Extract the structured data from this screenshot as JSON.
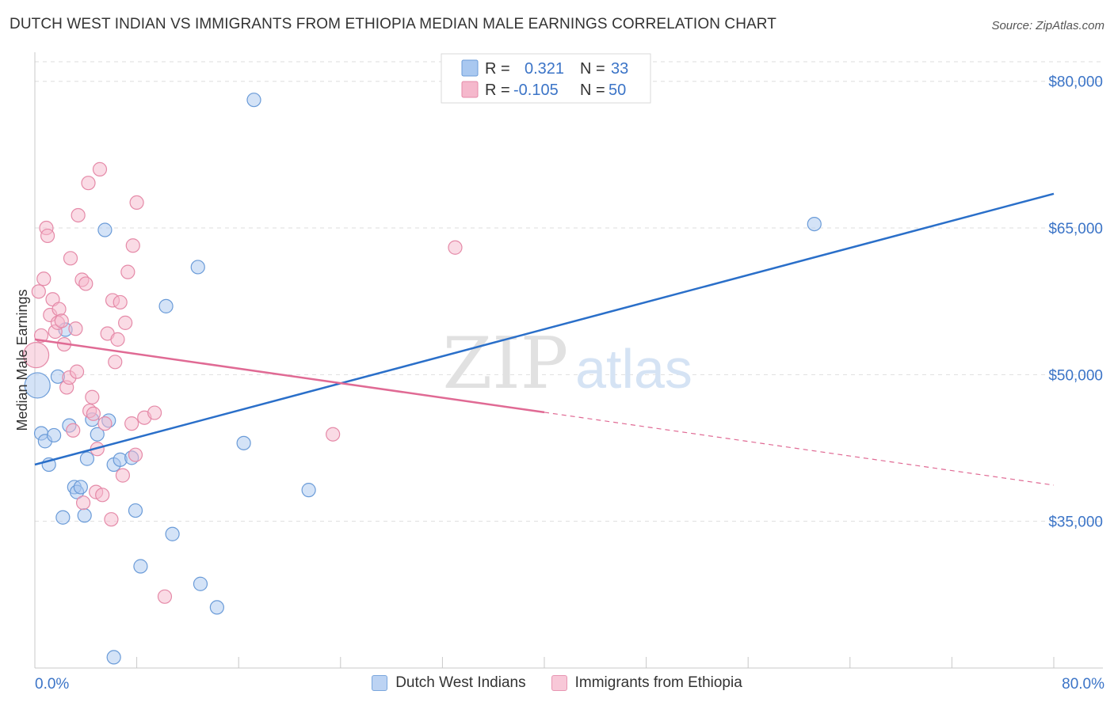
{
  "header": {
    "title": "DUTCH WEST INDIAN VS IMMIGRANTS FROM ETHIOPIA MEDIAN MALE EARNINGS CORRELATION CHART",
    "source": "Source: ZipAtlas.com"
  },
  "watermark": {
    "part1": "ZIP",
    "part2": "atlas"
  },
  "legend_top": [
    {
      "r_label": "R = ",
      "r_value": "0.321",
      "n_label": "N = ",
      "n_value": "33",
      "color": "#a9c8f0",
      "border": "#6a9bd8"
    },
    {
      "r_label": "R = ",
      "r_value": "-0.105",
      "n_label": "N = ",
      "n_value": "50",
      "color": "#f5b8cc",
      "border": "#e58aa8"
    }
  ],
  "legend_bottom": [
    {
      "label": "Dutch West Indians",
      "color": "#bcd3f3",
      "border": "#7aa6dd"
    },
    {
      "label": "Immigrants from Ethiopia",
      "color": "#f8c8d8",
      "border": "#e795b2"
    }
  ],
  "chart_data": {
    "type": "scatter",
    "title": "DUTCH WEST INDIAN VS IMMIGRANTS FROM ETHIOPIA MEDIAN MALE EARNINGS CORRELATION CHART",
    "xlabel": "",
    "ylabel": "Median Male Earnings",
    "xlim": [
      0,
      80
    ],
    "ylim": [
      20000,
      82000
    ],
    "x_tick_labels": [
      {
        "value": 0,
        "label": "0.0%"
      },
      {
        "value": 80,
        "label": "80.0%"
      }
    ],
    "y_tick_labels": [
      {
        "value": 80000,
        "label": "$80,000"
      },
      {
        "value": 65000,
        "label": "$65,000"
      },
      {
        "value": 50000,
        "label": "$50,000"
      },
      {
        "value": 35000,
        "label": "$35,000"
      }
    ],
    "series": [
      {
        "name": "Dutch West Indians",
        "color": "#a9c8f0",
        "stroke": "#6a9bd8",
        "line_color": "#2a6fc9",
        "trend": {
          "x0": 0,
          "y0": 40800,
          "x1": 80,
          "y1": 68500,
          "dashed_from": null
        },
        "points": [
          {
            "x": 0.2,
            "y": 48900
          },
          {
            "x": 0.5,
            "y": 44000
          },
          {
            "x": 0.8,
            "y": 43200
          },
          {
            "x": 1.1,
            "y": 40800
          },
          {
            "x": 1.5,
            "y": 43800
          },
          {
            "x": 1.8,
            "y": 49800
          },
          {
            "x": 2.2,
            "y": 35400
          },
          {
            "x": 2.4,
            "y": 54600
          },
          {
            "x": 2.7,
            "y": 44800
          },
          {
            "x": 3.1,
            "y": 38500
          },
          {
            "x": 3.3,
            "y": 38000
          },
          {
            "x": 3.6,
            "y": 38500
          },
          {
            "x": 3.9,
            "y": 35600
          },
          {
            "x": 4.1,
            "y": 41400
          },
          {
            "x": 4.5,
            "y": 45400
          },
          {
            "x": 4.9,
            "y": 43900
          },
          {
            "x": 5.5,
            "y": 64800
          },
          {
            "x": 5.8,
            "y": 45300
          },
          {
            "x": 6.2,
            "y": 40800
          },
          {
            "x": 6.7,
            "y": 41300
          },
          {
            "x": 7.6,
            "y": 41500
          },
          {
            "x": 7.9,
            "y": 36100
          },
          {
            "x": 8.3,
            "y": 30400
          },
          {
            "x": 10.3,
            "y": 57000
          },
          {
            "x": 10.8,
            "y": 33700
          },
          {
            "x": 12.8,
            "y": 61000
          },
          {
            "x": 13.0,
            "y": 28600
          },
          {
            "x": 14.3,
            "y": 26200
          },
          {
            "x": 16.4,
            "y": 43000
          },
          {
            "x": 17.2,
            "y": 78100
          },
          {
            "x": 21.5,
            "y": 38200
          },
          {
            "x": 6.2,
            "y": 21100
          },
          {
            "x": 61.2,
            "y": 65400
          }
        ]
      },
      {
        "name": "Immigrants from Ethiopia",
        "color": "#f5b8cc",
        "stroke": "#e58aa8",
        "line_color": "#e06a94",
        "trend": {
          "x0": 0,
          "y0": 53600,
          "x1": 80,
          "y1": 38700,
          "dashed_from": 40
        },
        "points": [
          {
            "x": 0.1,
            "y": 52000
          },
          {
            "x": 0.3,
            "y": 58500
          },
          {
            "x": 0.5,
            "y": 54000
          },
          {
            "x": 0.7,
            "y": 59800
          },
          {
            "x": 0.9,
            "y": 65000
          },
          {
            "x": 1.0,
            "y": 64200
          },
          {
            "x": 1.2,
            "y": 56100
          },
          {
            "x": 1.4,
            "y": 57700
          },
          {
            "x": 1.6,
            "y": 54400
          },
          {
            "x": 1.8,
            "y": 55300
          },
          {
            "x": 1.9,
            "y": 56700
          },
          {
            "x": 2.1,
            "y": 55500
          },
          {
            "x": 2.3,
            "y": 53100
          },
          {
            "x": 2.5,
            "y": 48700
          },
          {
            "x": 2.7,
            "y": 49700
          },
          {
            "x": 2.8,
            "y": 61900
          },
          {
            "x": 3.0,
            "y": 44300
          },
          {
            "x": 3.2,
            "y": 54700
          },
          {
            "x": 3.3,
            "y": 50300
          },
          {
            "x": 3.4,
            "y": 66300
          },
          {
            "x": 3.7,
            "y": 59700
          },
          {
            "x": 3.8,
            "y": 36900
          },
          {
            "x": 4.0,
            "y": 59300
          },
          {
            "x": 4.2,
            "y": 69600
          },
          {
            "x": 4.3,
            "y": 46300
          },
          {
            "x": 4.5,
            "y": 47700
          },
          {
            "x": 4.6,
            "y": 46000
          },
          {
            "x": 4.8,
            "y": 38000
          },
          {
            "x": 4.9,
            "y": 42400
          },
          {
            "x": 5.1,
            "y": 71000
          },
          {
            "x": 5.3,
            "y": 37700
          },
          {
            "x": 5.5,
            "y": 45000
          },
          {
            "x": 5.7,
            "y": 54200
          },
          {
            "x": 6.0,
            "y": 35200
          },
          {
            "x": 6.1,
            "y": 57600
          },
          {
            "x": 6.3,
            "y": 51300
          },
          {
            "x": 6.5,
            "y": 53600
          },
          {
            "x": 6.7,
            "y": 57400
          },
          {
            "x": 6.9,
            "y": 39700
          },
          {
            "x": 7.1,
            "y": 55300
          },
          {
            "x": 7.3,
            "y": 60500
          },
          {
            "x": 7.6,
            "y": 45000
          },
          {
            "x": 7.7,
            "y": 63200
          },
          {
            "x": 7.9,
            "y": 41800
          },
          {
            "x": 8.0,
            "y": 67600
          },
          {
            "x": 8.6,
            "y": 45600
          },
          {
            "x": 9.4,
            "y": 46100
          },
          {
            "x": 10.2,
            "y": 27300
          },
          {
            "x": 23.4,
            "y": 43900
          },
          {
            "x": 33.0,
            "y": 63000
          }
        ]
      }
    ]
  }
}
